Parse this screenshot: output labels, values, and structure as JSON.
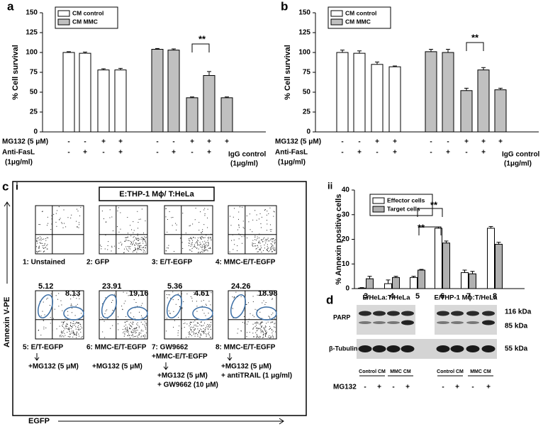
{
  "panel_labels": [
    "a",
    "b",
    "c",
    "i",
    "ii",
    "d"
  ],
  "chart_data": [
    {
      "type": "bar",
      "ylabel": "% Cell survival",
      "ylim": [
        0,
        150
      ],
      "yticks": [
        0,
        25,
        50,
        75,
        100,
        125,
        150
      ],
      "series": [
        {
          "name": "CM control",
          "color": "#ffffff",
          "values": [
            100,
            99,
            78,
            78,
            null,
            null,
            null,
            null,
            null
          ],
          "errors": [
            1,
            1.5,
            1.5,
            2,
            null,
            null,
            null,
            null,
            null
          ]
        },
        {
          "name": "CM MMC",
          "color": "#c0c0c0",
          "values": [
            null,
            null,
            null,
            null,
            104,
            103,
            43,
            71,
            43
          ],
          "errors": [
            null,
            null,
            null,
            null,
            1,
            1.5,
            1,
            5,
            1
          ]
        }
      ],
      "condition_rows": [
        {
          "label": "MG132 (5 μM)",
          "signs": [
            "-",
            "-",
            "+",
            "+",
            "-",
            "-",
            "+",
            "+",
            "+"
          ]
        },
        {
          "label": "Anti-FasL",
          "sublabel": "(1μg/ml)",
          "signs": [
            "-",
            "+",
            "-",
            "+",
            "-",
            "+",
            "-",
            "+",
            null
          ]
        }
      ],
      "last_label": "IgG control",
      "last_sublabel": "(1μg/ml)",
      "annotations": [
        "**"
      ]
    },
    {
      "type": "bar",
      "ylabel": "% Cell survival",
      "ylim": [
        0,
        150
      ],
      "yticks": [
        0,
        25,
        50,
        75,
        100,
        125,
        150
      ],
      "series": [
        {
          "name": "CM control",
          "color": "#ffffff",
          "values": [
            100,
            99,
            85,
            82,
            null,
            null,
            null,
            null,
            null
          ],
          "errors": [
            3,
            3,
            3,
            1,
            null,
            null,
            null,
            null,
            null
          ]
        },
        {
          "name": "CM MMC",
          "color": "#c0c0c0",
          "values": [
            null,
            null,
            null,
            null,
            101,
            100,
            52,
            78,
            53
          ],
          "errors": [
            null,
            null,
            null,
            null,
            3,
            4,
            3,
            3,
            2
          ]
        }
      ],
      "condition_rows": [
        {
          "label": "MG132 (5 μM)",
          "signs": [
            "-",
            "-",
            "+",
            "+",
            "-",
            "-",
            "+",
            "+",
            "+"
          ]
        },
        {
          "label": "Anti-FasL",
          "sublabel": "(1μg/ml)",
          "signs": [
            "-",
            "+",
            "-",
            "+",
            "-",
            "+",
            "-",
            "+",
            null
          ]
        }
      ],
      "last_label": "IgG control",
      "last_sublabel": "(1μg/ml)",
      "annotations": [
        "**"
      ]
    },
    {
      "type": "grouped_bar",
      "ylabel": "% Annexin positive cells",
      "ylim": [
        0,
        40
      ],
      "yticks": [
        0,
        10,
        20,
        30,
        40
      ],
      "categories": [
        "3",
        "4",
        "5",
        "6",
        "7",
        "8"
      ],
      "series": [
        {
          "name": "Effector cells",
          "color": "#ffffff",
          "values": [
            0.2,
            2,
            4.5,
            24.5,
            6.5,
            24.5
          ],
          "errors": [
            0.2,
            1.5,
            0.5,
            0.5,
            1,
            0.7
          ]
        },
        {
          "name": "Target cells",
          "color": "#b0b0b0",
          "values": [
            4,
            4.5,
            7.5,
            18.5,
            6,
            18
          ],
          "errors": [
            1,
            0.5,
            0.3,
            0.8,
            1,
            0.8
          ]
        }
      ],
      "annotations": [
        "**",
        "**"
      ]
    }
  ],
  "flow": {
    "header": "E:THP-1 Mϕ/ T:HeLa",
    "y_label": "Annexin V-PE",
    "x_label": "EGFP",
    "panels": [
      {
        "caption": [
          "1: Unstained"
        ]
      },
      {
        "caption": [
          "2: GFP"
        ]
      },
      {
        "caption": [
          "3: E/T-EGFP"
        ]
      },
      {
        "caption": [
          "4: MMC-E/T-EGFP"
        ]
      },
      {
        "caption": [
          "5: E/T-EGFP"
        ],
        "treatment": [
          "+MG132  (5 μM)"
        ],
        "gates": [
          5.12,
          8.13
        ]
      },
      {
        "caption": [
          "6: MMC-E/T-EGFP"
        ],
        "treatment": [
          "+MG132  (5 μM)"
        ],
        "gates": [
          23.91,
          19.16
        ]
      },
      {
        "caption": [
          "7: GW9662",
          "+MMC-E/T-EGFP"
        ],
        "treatment": [
          "+MG132  (5 μM)",
          "+ GW9662 (10 μM)"
        ],
        "gates": [
          5.36,
          4.61
        ]
      },
      {
        "caption": [
          "8: MMC-E/T-EGFP"
        ],
        "treatment": [
          "+MG132  (5 μM)",
          "+ antiTRAIL (1 μg/ml)"
        ],
        "gates": [
          24.26,
          18.98
        ]
      }
    ]
  },
  "blot": {
    "groups": [
      "E/HeLa:T/HeLa",
      "E/THP-1 Mϕ:T/HeLa"
    ],
    "rows": [
      "PARP",
      "β-Tubulin"
    ],
    "sizes": [
      "116 kDa",
      "85 kDa",
      "55 kDa"
    ],
    "lane_groups": [
      "Control CM",
      "MMC CM",
      "Control CM",
      "MMC CM"
    ],
    "treatment": "MG132",
    "signs": [
      "-",
      "+",
      "-",
      "+",
      "-",
      "+",
      "-",
      "+"
    ]
  }
}
